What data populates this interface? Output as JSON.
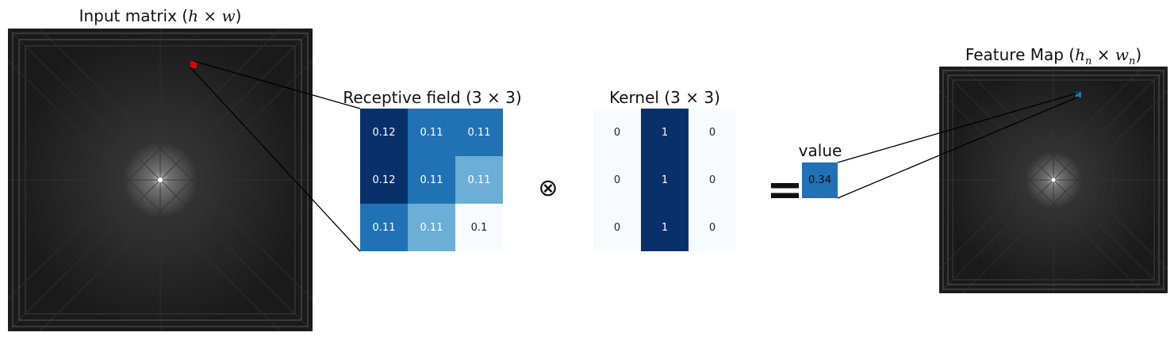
{
  "input_panel": {
    "title_text": "Input matrix",
    "title_math": "h × w"
  },
  "receptive_field": {
    "title_text": "Receptive field",
    "title_math": "3 × 3",
    "values": [
      [
        "0.12",
        "0.11",
        "0.11"
      ],
      [
        "0.12",
        "0.11",
        "0.11"
      ],
      [
        "0.11",
        "0.11",
        "0.1"
      ]
    ]
  },
  "kernel": {
    "title_text": "Kernel",
    "title_math": "3 × 3",
    "values": [
      [
        "0",
        "1",
        "0"
      ],
      [
        "0",
        "1",
        "0"
      ],
      [
        "0",
        "1",
        "0"
      ]
    ]
  },
  "operator_symbol": "⊗",
  "equals_symbol": "=",
  "output_value": {
    "label": "value",
    "value": "0.34"
  },
  "feature_map": {
    "title_text": "Feature Map",
    "title_math_h": "h",
    "title_math_w": "w",
    "title_sub": "n"
  },
  "colors": {
    "highlight_input": "#dd0000",
    "highlight_output": "#1f77b4",
    "cmap_blues_dark": "#08306b",
    "cmap_blues_mid": "#2171b5",
    "cmap_blues_light": "#6baed6",
    "cmap_blues_pale": "#f7fbff",
    "value_box": "#2171b5"
  }
}
